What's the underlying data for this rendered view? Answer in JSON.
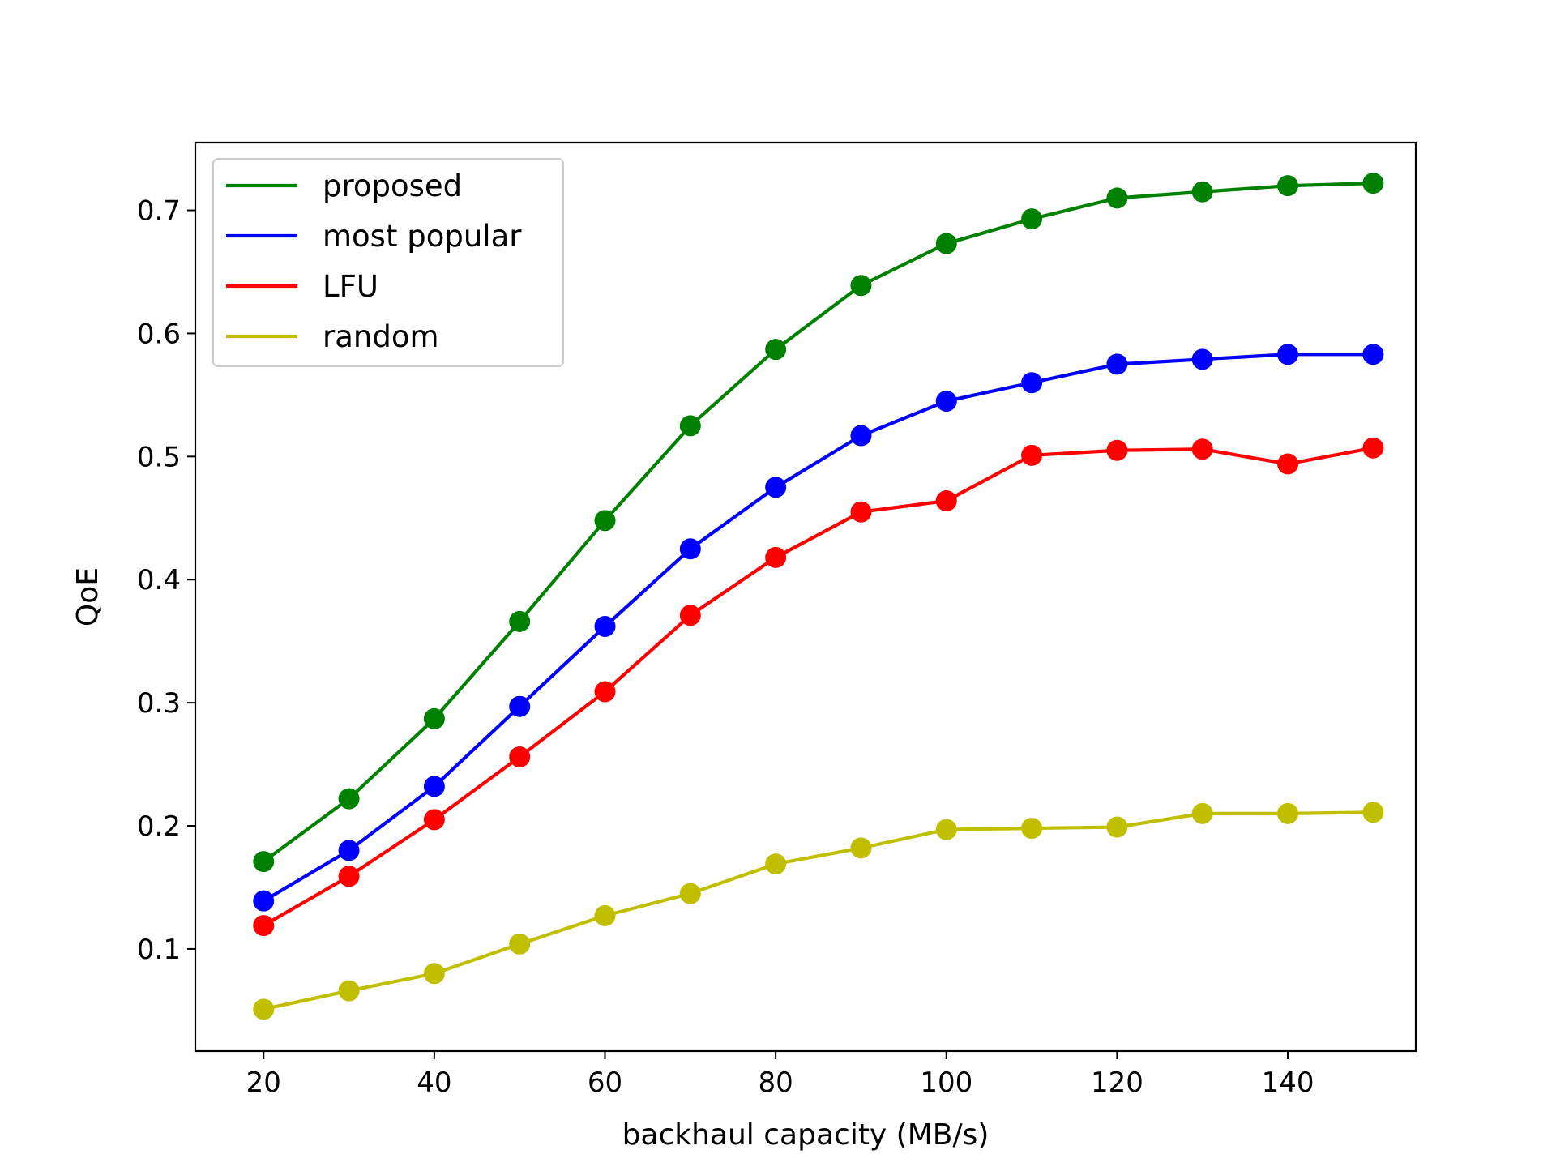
{
  "chart_data": {
    "type": "line",
    "xlabel": "backhaul capacity (MB/s)",
    "ylabel": "QoE",
    "xlim": [
      12,
      155
    ],
    "ylim": [
      0.017,
      0.755
    ],
    "x": [
      20,
      30,
      40,
      50,
      60,
      70,
      80,
      90,
      100,
      110,
      120,
      130,
      140,
      150
    ],
    "x_ticks": [
      20,
      40,
      60,
      80,
      100,
      120,
      140
    ],
    "y_ticks": [
      0.1,
      0.2,
      0.3,
      0.4,
      0.5,
      0.6,
      0.7
    ],
    "grid": false,
    "legend_position": "top-left",
    "series": [
      {
        "name": "proposed",
        "color": "#008000",
        "values": [
          0.171,
          0.222,
          0.287,
          0.366,
          0.448,
          0.525,
          0.587,
          0.639,
          0.673,
          0.693,
          0.71,
          0.715,
          0.72,
          0.722
        ]
      },
      {
        "name": "most popular",
        "color": "#0000ff",
        "values": [
          0.139,
          0.18,
          0.232,
          0.297,
          0.362,
          0.425,
          0.475,
          0.517,
          0.545,
          0.56,
          0.575,
          0.579,
          0.583,
          0.583
        ]
      },
      {
        "name": "LFU",
        "color": "#ff0000",
        "values": [
          0.119,
          0.159,
          0.205,
          0.256,
          0.309,
          0.371,
          0.418,
          0.455,
          0.464,
          0.501,
          0.505,
          0.506,
          0.494,
          0.507
        ]
      },
      {
        "name": "random",
        "color": "#bfbf00",
        "values": [
          0.051,
          0.066,
          0.08,
          0.104,
          0.127,
          0.145,
          0.169,
          0.182,
          0.197,
          0.198,
          0.199,
          0.21,
          0.21,
          0.211
        ]
      }
    ]
  }
}
